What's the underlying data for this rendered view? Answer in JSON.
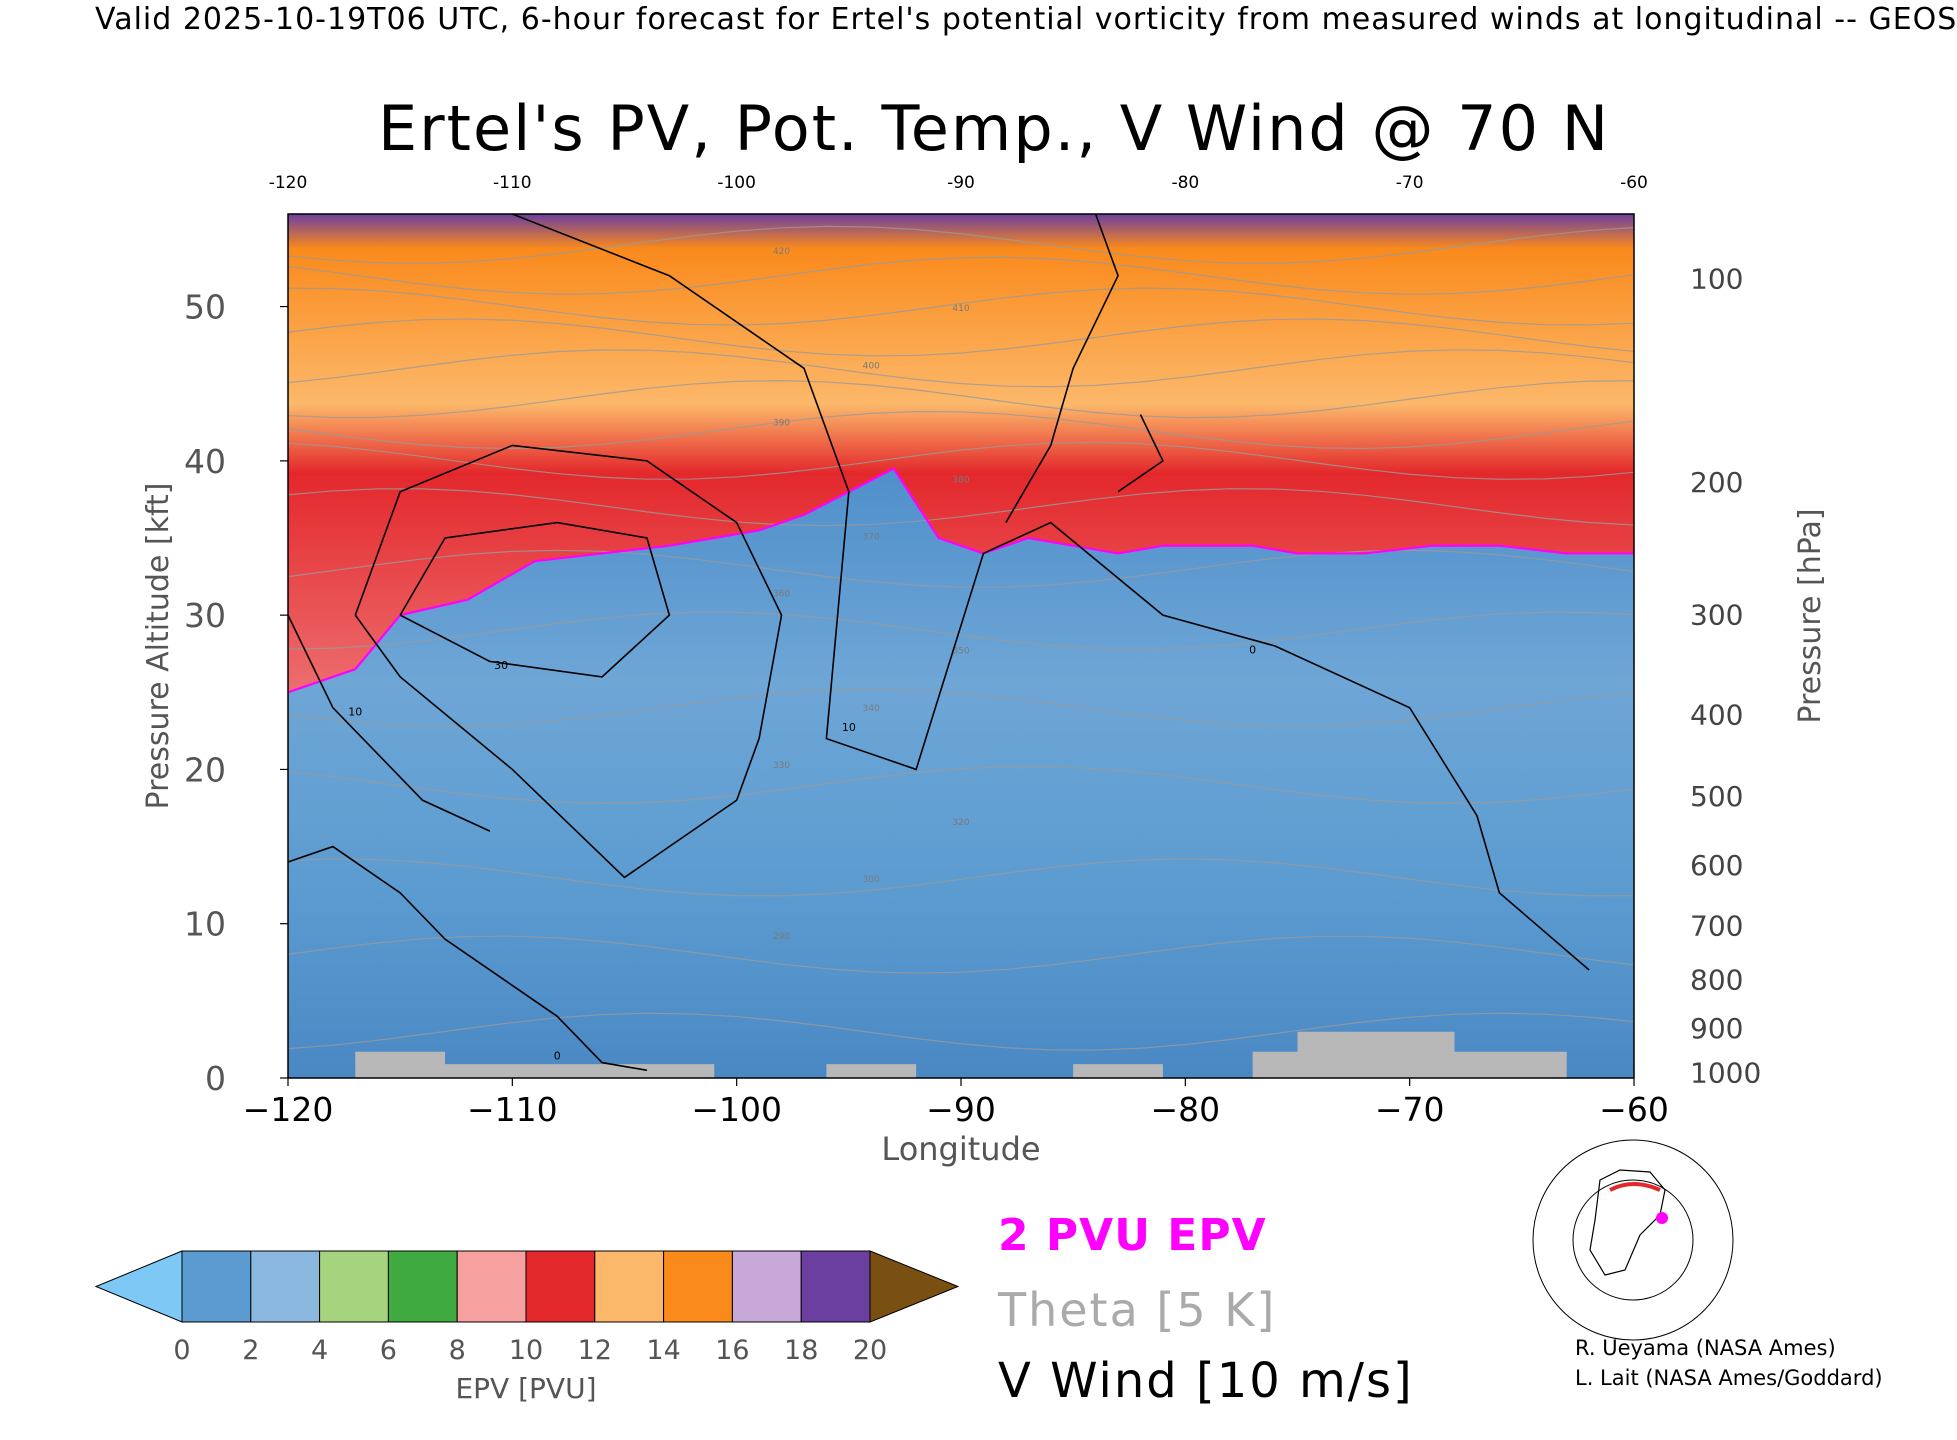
{
  "header": {
    "valid_line": "Valid 2025-10-19T06 UTC, 6-hour forecast for Ertel's potential vorticity from measured winds at longitudinal -- GEOS",
    "title": "Ertel's PV, Pot. Temp., V Wind @ 70 N"
  },
  "chart_data": {
    "type": "heatmap",
    "title": "Ertel's PV, Pot. Temp., V Wind @ 70 N",
    "xlabel": "Longitude",
    "ylabel": "Pressure Altitude [kft]",
    "y2label": "Pressure [hPa]",
    "xlim": [
      -120,
      -60
    ],
    "ylim": [
      0,
      56
    ],
    "x_ticks": [
      -120,
      -110,
      -100,
      -90,
      -80,
      -70,
      -60
    ],
    "x_tick_labels": [
      "−120",
      "−110",
      "−100",
      "−90",
      "−80",
      "−70",
      "−60"
    ],
    "y_ticks": [
      0,
      10,
      20,
      30,
      40,
      50
    ],
    "pressure_ticks": [
      100,
      200,
      300,
      400,
      500,
      600,
      700,
      800,
      900,
      1000
    ],
    "pressure_axis": "log",
    "grid": false,
    "colorbar": {
      "label": "EPV [PVU]",
      "ticks": [
        0,
        2,
        4,
        6,
        8,
        10,
        12,
        14,
        16,
        18,
        20
      ],
      "extend": "both",
      "colors": [
        "#7dc8f5",
        "#5b9bd0",
        "#8ab8de",
        "#a6d47e",
        "#3faa3f",
        "#f6a0a0",
        "#e3282c",
        "#fcb86a",
        "#fa8a1c",
        "#c8a8d8",
        "#6b3fa0",
        "#f6f2a0",
        "#7a4f12"
      ]
    },
    "legend": {
      "pvu_label": "2 PVU EPV",
      "theta_label": "Theta [5 K]",
      "wind_label": "V Wind [10 m/s]",
      "pvu_color": "#ff00ff",
      "theta_color": "#aaaaaa",
      "wind_color": "#000000"
    },
    "tropopause_2pvu": {
      "lon": [
        -120,
        -117,
        -115,
        -112,
        -109,
        -106,
        -103,
        -101,
        -99,
        -97,
        -95,
        -93,
        -91,
        -89,
        -87,
        -85,
        -83,
        -81,
        -79,
        -77,
        -75,
        -72,
        -69,
        -66,
        -63,
        -60
      ],
      "alt": [
        25,
        26.5,
        30,
        31,
        33.5,
        34,
        34.5,
        35,
        35.5,
        36.5,
        38,
        39.5,
        35,
        34,
        35,
        34.5,
        34,
        34.5,
        34.5,
        34.5,
        34,
        34,
        34.5,
        34.5,
        34,
        34
      ]
    },
    "theta_contour_labels": [
      "290",
      "300",
      "320",
      "330",
      "340",
      "350",
      "360",
      "370",
      "380",
      "390",
      "400",
      "410",
      "420"
    ],
    "wind_contour_labels": [
      "0",
      "10",
      "30"
    ]
  },
  "inset_map": {
    "icon": "north-polar-map-icon",
    "marker_color": "#ff00ff",
    "path_color": "#e3282c"
  },
  "credits": [
    "R. Ueyama (NASA Ames)",
    "L. Lait (NASA Ames/Goddard)"
  ]
}
